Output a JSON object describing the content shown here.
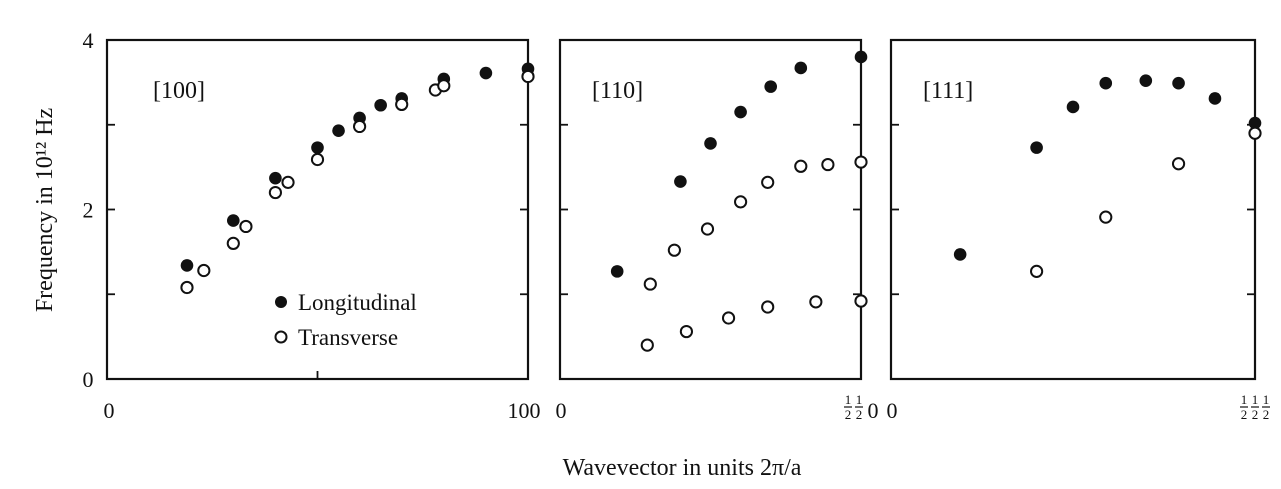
{
  "chart_data": {
    "type": "scatter",
    "ylabel": "Frequency in 10¹² Hz",
    "xlabel": "Wavevector in units 2π/a",
    "ylim": [
      0,
      4
    ],
    "y_ticks": [
      "0",
      "2",
      "4"
    ],
    "legend": {
      "placement": "lower-right of first panel",
      "entries": [
        {
          "marker": "filled-circle",
          "label": "Longitudinal"
        },
        {
          "marker": "open-circle",
          "label": "Transverse"
        }
      ]
    },
    "colors": {
      "ink": "#111111",
      "background": "#ffffff"
    },
    "grid": false,
    "panels": [
      {
        "label": "[100]",
        "xlim": [
          0,
          1
        ],
        "x_start_label": "0",
        "x_end_label": "100",
        "series": [
          {
            "name": "Longitudinal",
            "marker": "filled",
            "points": [
              [
                0.19,
                1.34
              ],
              [
                0.3,
                1.87
              ],
              [
                0.4,
                2.37
              ],
              [
                0.5,
                2.73
              ],
              [
                0.55,
                2.93
              ],
              [
                0.6,
                3.08
              ],
              [
                0.65,
                3.23
              ],
              [
                0.7,
                3.31
              ],
              [
                0.8,
                3.54
              ],
              [
                0.9,
                3.61
              ],
              [
                1.0,
                3.66
              ]
            ]
          },
          {
            "name": "Transverse",
            "marker": "open",
            "points": [
              [
                0.19,
                1.08
              ],
              [
                0.23,
                1.28
              ],
              [
                0.3,
                1.6
              ],
              [
                0.33,
                1.8
              ],
              [
                0.4,
                2.2
              ],
              [
                0.43,
                2.32
              ],
              [
                0.5,
                2.59
              ],
              [
                0.6,
                2.98
              ],
              [
                0.7,
                3.24
              ],
              [
                0.78,
                3.41
              ],
              [
                0.8,
                3.46
              ],
              [
                1.0,
                3.57
              ]
            ]
          }
        ]
      },
      {
        "label": "[110]",
        "xlim": [
          0,
          1
        ],
        "x_start_label": "0",
        "x_end_label": "½½0",
        "series": [
          {
            "name": "Longitudinal",
            "marker": "filled",
            "points": [
              [
                0.19,
                1.27
              ],
              [
                0.4,
                2.33
              ],
              [
                0.5,
                2.78
              ],
              [
                0.6,
                3.15
              ],
              [
                0.7,
                3.45
              ],
              [
                0.8,
                3.67
              ],
              [
                1.0,
                3.8
              ]
            ]
          },
          {
            "name": "Transverse",
            "marker": "open",
            "points": [
              [
                0.3,
                1.12
              ],
              [
                0.38,
                1.52
              ],
              [
                0.49,
                1.77
              ],
              [
                0.6,
                2.09
              ],
              [
                0.69,
                2.32
              ],
              [
                0.8,
                2.51
              ],
              [
                0.89,
                2.53
              ],
              [
                1.0,
                2.56
              ]
            ]
          },
          {
            "name": "Transverse",
            "marker": "open",
            "points": [
              [
                0.29,
                0.4
              ],
              [
                0.42,
                0.56
              ],
              [
                0.56,
                0.72
              ],
              [
                0.69,
                0.85
              ],
              [
                0.85,
                0.91
              ],
              [
                1.0,
                0.92
              ]
            ]
          }
        ]
      },
      {
        "label": "[111]",
        "xlim": [
          0,
          1
        ],
        "x_start_label": "0",
        "x_end_label": "½½½",
        "series": [
          {
            "name": "Longitudinal",
            "marker": "filled",
            "points": [
              [
                0.19,
                1.47
              ],
              [
                0.4,
                2.73
              ],
              [
                0.5,
                3.21
              ],
              [
                0.59,
                3.49
              ],
              [
                0.7,
                3.52
              ],
              [
                0.79,
                3.49
              ],
              [
                0.89,
                3.31
              ],
              [
                1.0,
                3.02
              ]
            ]
          },
          {
            "name": "Transverse",
            "marker": "open",
            "points": [
              [
                0.4,
                1.27
              ],
              [
                0.59,
                1.91
              ],
              [
                0.79,
                2.54
              ],
              [
                1.0,
                2.9
              ]
            ]
          }
        ]
      }
    ]
  }
}
